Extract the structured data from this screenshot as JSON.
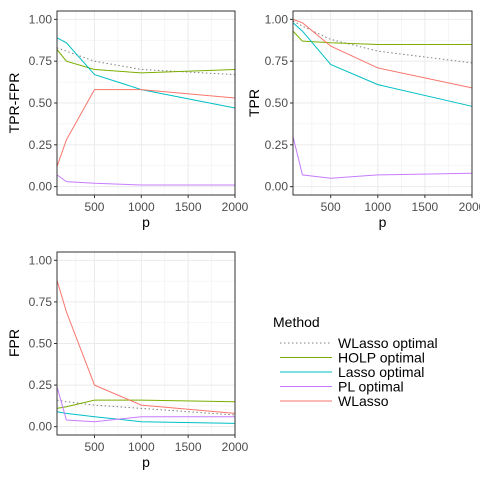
{
  "chart_data": [
    {
      "type": "line",
      "id": "tpr-fpr",
      "xlabel": "p",
      "ylabel": "TPR-FPR",
      "xlim": [
        100,
        2000
      ],
      "ylim": [
        0,
        1
      ],
      "xticks": [
        500,
        1000,
        1500,
        2000
      ],
      "xtick_labels": [
        "500",
        "1000",
        "1500",
        "2000"
      ],
      "yticks": [
        0,
        0.25,
        0.5,
        0.75,
        1
      ],
      "ytick_labels": [
        "0.00",
        "0.25",
        "0.50",
        "0.75",
        "1.00"
      ],
      "grid": true,
      "x": [
        100,
        200,
        500,
        1000,
        2000
      ],
      "series": [
        {
          "key": "wlasso_optimal",
          "values": [
            0.83,
            0.81,
            0.75,
            0.7,
            0.67
          ]
        },
        {
          "key": "holp_optimal",
          "values": [
            0.82,
            0.75,
            0.7,
            0.68,
            0.7
          ]
        },
        {
          "key": "lasso_optimal",
          "values": [
            0.89,
            0.86,
            0.67,
            0.58,
            0.47
          ]
        },
        {
          "key": "pl_optimal",
          "values": [
            0.07,
            0.03,
            0.02,
            0.01,
            0.01
          ]
        },
        {
          "key": "wlasso",
          "values": [
            0.12,
            0.28,
            0.58,
            0.58,
            0.53
          ]
        }
      ]
    },
    {
      "type": "line",
      "id": "tpr",
      "xlabel": "p",
      "ylabel": "TPR",
      "xlim": [
        100,
        2000
      ],
      "ylim": [
        0,
        1
      ],
      "xticks": [
        500,
        1000,
        1500,
        2000
      ],
      "xtick_labels": [
        "500",
        "1000",
        "1500",
        "2000"
      ],
      "yticks": [
        0,
        0.25,
        0.5,
        0.75,
        1
      ],
      "ytick_labels": [
        "0.00",
        "0.25",
        "0.50",
        "0.75",
        "1.00"
      ],
      "grid": true,
      "x": [
        100,
        200,
        500,
        1000,
        2000
      ],
      "series": [
        {
          "key": "wlasso_optimal",
          "values": [
            0.99,
            0.96,
            0.88,
            0.81,
            0.74
          ]
        },
        {
          "key": "holp_optimal",
          "values": [
            0.93,
            0.87,
            0.86,
            0.85,
            0.85
          ]
        },
        {
          "key": "lasso_optimal",
          "values": [
            0.98,
            0.93,
            0.73,
            0.61,
            0.48
          ]
        },
        {
          "key": "pl_optimal",
          "values": [
            0.3,
            0.07,
            0.05,
            0.07,
            0.08
          ]
        },
        {
          "key": "wlasso",
          "values": [
            1.0,
            0.98,
            0.84,
            0.71,
            0.59
          ]
        }
      ]
    },
    {
      "type": "line",
      "id": "fpr",
      "xlabel": "p",
      "ylabel": "FPR",
      "xlim": [
        100,
        2000
      ],
      "ylim": [
        0,
        1
      ],
      "xticks": [
        500,
        1000,
        1500,
        2000
      ],
      "xtick_labels": [
        "500",
        "1000",
        "1500",
        "2000"
      ],
      "yticks": [
        0,
        0.25,
        0.5,
        0.75,
        1
      ],
      "ytick_labels": [
        "0.00",
        "0.25",
        "0.50",
        "0.75",
        "1.00"
      ],
      "grid": true,
      "x": [
        100,
        200,
        500,
        1000,
        2000
      ],
      "series": [
        {
          "key": "wlasso_optimal",
          "values": [
            0.16,
            0.15,
            0.13,
            0.11,
            0.07
          ]
        },
        {
          "key": "holp_optimal",
          "values": [
            0.11,
            0.12,
            0.16,
            0.16,
            0.15
          ]
        },
        {
          "key": "lasso_optimal",
          "values": [
            0.09,
            0.08,
            0.06,
            0.03,
            0.02
          ]
        },
        {
          "key": "pl_optimal",
          "values": [
            0.24,
            0.04,
            0.03,
            0.06,
            0.06
          ]
        },
        {
          "key": "wlasso",
          "values": [
            0.88,
            0.69,
            0.25,
            0.13,
            0.08
          ]
        }
      ]
    }
  ],
  "legend": {
    "title": "Method",
    "placement": "bottom-right",
    "items": [
      {
        "key": "wlasso_optimal",
        "label": "WLasso optimal",
        "color": "#7F7F7F",
        "dash": "dotted"
      },
      {
        "key": "holp_optimal",
        "label": "HOLP optimal",
        "color": "#7CAE00",
        "dash": "solid"
      },
      {
        "key": "lasso_optimal",
        "label": "Lasso optimal",
        "color": "#00BFC4",
        "dash": "solid"
      },
      {
        "key": "pl_optimal",
        "label": "PL optimal",
        "color": "#C77CFF",
        "dash": "solid"
      },
      {
        "key": "wlasso",
        "label": "WLasso",
        "color": "#F8766D",
        "dash": "solid"
      }
    ]
  }
}
